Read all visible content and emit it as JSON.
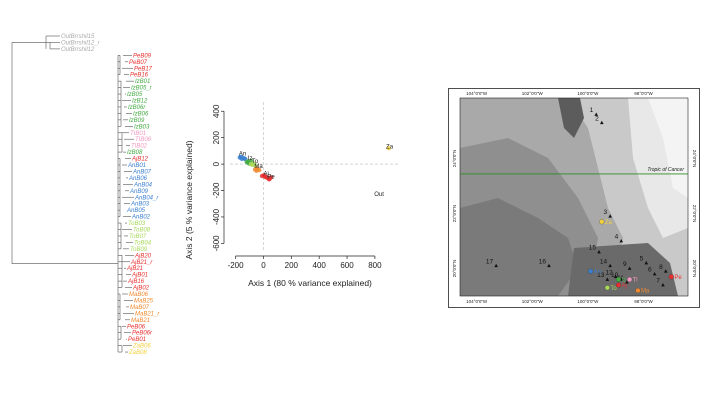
{
  "tree": {
    "tips": [
      {
        "label": "OutBrrshil15",
        "color": "#aaaaaa"
      },
      {
        "label": "OutBrrshil12_r",
        "color": "#aaaaaa"
      },
      {
        "label": "OutBrrshil12",
        "color": "#aaaaaa"
      },
      {
        "label": "PeB09",
        "color": "#e83030"
      },
      {
        "label": "PeB07",
        "color": "#e83030"
      },
      {
        "label": "PeB17",
        "color": "#e83030"
      },
      {
        "label": "PeB16",
        "color": "#e83030"
      },
      {
        "label": "IzB01",
        "color": "#44aa44"
      },
      {
        "label": "IzB05_r",
        "color": "#44aa44"
      },
      {
        "label": "IzB05",
        "color": "#44aa44"
      },
      {
        "label": "IzB12",
        "color": "#44aa44"
      },
      {
        "label": "IzB06r",
        "color": "#44aa44"
      },
      {
        "label": "IzB06",
        "color": "#44aa44"
      },
      {
        "label": "IzB09",
        "color": "#44aa44"
      },
      {
        "label": "IzB03",
        "color": "#44aa44"
      },
      {
        "label": "TIB01",
        "color": "#f29ac0"
      },
      {
        "label": "TIB08",
        "color": "#f29ac0"
      },
      {
        "label": "TIB02",
        "color": "#f29ac0"
      },
      {
        "label": "IzB08",
        "color": "#44aa44"
      },
      {
        "label": "AjB12",
        "color": "#e83030"
      },
      {
        "label": "AnB01",
        "color": "#3a7fd0"
      },
      {
        "label": "AnB07",
        "color": "#3a7fd0"
      },
      {
        "label": "AnB06",
        "color": "#3a7fd0"
      },
      {
        "label": "AnB04",
        "color": "#3a7fd0"
      },
      {
        "label": "AnB09",
        "color": "#3a7fd0"
      },
      {
        "label": "AnB04_r",
        "color": "#3a7fd0"
      },
      {
        "label": "AnB03",
        "color": "#3a7fd0"
      },
      {
        "label": "AnB05",
        "color": "#3a7fd0"
      },
      {
        "label": "AnB02",
        "color": "#3a7fd0"
      },
      {
        "label": "ToB03",
        "color": "#a8d95a"
      },
      {
        "label": "ToB08",
        "color": "#a8d95a"
      },
      {
        "label": "ToB07",
        "color": "#a8d95a"
      },
      {
        "label": "ToB04",
        "color": "#a8d95a"
      },
      {
        "label": "ToB09",
        "color": "#a8d95a"
      },
      {
        "label": "AjB20",
        "color": "#e83030"
      },
      {
        "label": "AjB21_r",
        "color": "#e83030"
      },
      {
        "label": "AjB21",
        "color": "#e83030"
      },
      {
        "label": "AjB01",
        "color": "#e83030"
      },
      {
        "label": "AjB16",
        "color": "#e83030"
      },
      {
        "label": "AjB02",
        "color": "#e83030"
      },
      {
        "label": "MaB06",
        "color": "#f08a30"
      },
      {
        "label": "MaB25",
        "color": "#f08a30"
      },
      {
        "label": "MaB07",
        "color": "#f08a30"
      },
      {
        "label": "MaB21_r",
        "color": "#f08a30"
      },
      {
        "label": "MaB21",
        "color": "#f08a30"
      },
      {
        "label": "PeB06",
        "color": "#e83030"
      },
      {
        "label": "PeB06r",
        "color": "#e83030"
      },
      {
        "label": "PeB01",
        "color": "#e83030"
      },
      {
        "label": "ZaB06",
        "color": "#f2d040"
      },
      {
        "label": "ZaB08",
        "color": "#f2d040"
      }
    ]
  },
  "chart_data": {
    "type": "scatter",
    "xlabel": "Axis 1 (80 % variance explained)",
    "ylabel": "Axis 2 (5 % variance explained)",
    "xlim": [
      -240,
      980
    ],
    "ylim": [
      -650,
      470
    ],
    "xticks": [
      -200,
      0,
      200,
      400,
      600,
      800
    ],
    "yticks": [
      -600,
      -400,
      -200,
      0,
      200,
      400
    ],
    "reference_lines": {
      "x": 0,
      "y": 0,
      "style": "dashed"
    },
    "series": [
      {
        "name": "An",
        "color": "#3a7fd0",
        "points": [
          [
            -170,
            50
          ],
          [
            -155,
            40
          ],
          [
            -140,
            45
          ],
          [
            -160,
            55
          ],
          [
            -130,
            38
          ]
        ]
      },
      {
        "name": "Iz",
        "color": "#44aa44",
        "points": [
          [
            -120,
            15
          ],
          [
            -110,
            20
          ],
          [
            -100,
            10
          ],
          [
            -90,
            25
          ],
          [
            -105,
            5
          ]
        ]
      },
      {
        "name": "To",
        "color": "#a8d95a",
        "points": [
          [
            -90,
            0
          ],
          [
            -80,
            -5
          ],
          [
            -70,
            5
          ],
          [
            -60,
            -10
          ]
        ]
      },
      {
        "name": "Ma",
        "color": "#f08a30",
        "points": [
          [
            -60,
            -40
          ],
          [
            -45,
            -35
          ],
          [
            -30,
            -45
          ],
          [
            -50,
            -50
          ]
        ]
      },
      {
        "name": "Aj",
        "color": "#e83030",
        "points": [
          [
            -10,
            -90
          ],
          [
            5,
            -85
          ],
          [
            20,
            -100
          ],
          [
            10,
            -95
          ]
        ]
      },
      {
        "name": "Pe",
        "color": "#e83030",
        "points": [
          [
            30,
            -105
          ],
          [
            45,
            -110
          ],
          [
            55,
            -100
          ],
          [
            40,
            -115
          ]
        ]
      },
      {
        "name": "Za",
        "color": "#f2d040",
        "points": [
          [
            900,
            120
          ]
        ]
      },
      {
        "name": "Out",
        "color": "#aaaaaa",
        "points": []
      }
    ],
    "labels": [
      {
        "text": "An",
        "x": -150,
        "y": 65,
        "color": "#3a7fd0"
      },
      {
        "text": "Iz",
        "x": -95,
        "y": 30,
        "color": "#44aa44"
      },
      {
        "text": "To",
        "x": -60,
        "y": 10,
        "color": "#a8d95a"
      },
      {
        "text": "Ma",
        "x": -35,
        "y": -30,
        "color": "#f08a30"
      },
      {
        "text": "Aj",
        "x": 20,
        "y": -85,
        "color": "#e83030"
      },
      {
        "text": "Pe",
        "x": 55,
        "y": -110,
        "color": "#e83030"
      },
      {
        "text": "Za",
        "x": 905,
        "y": 120,
        "color": "#c8a800"
      },
      {
        "text": "Out",
        "x": 830,
        "y": -240,
        "color": "#aaaaaa"
      }
    ]
  },
  "map": {
    "lon_ticks_top": [
      "104°0'0\"W",
      "102°0'0\"W",
      "100°0'0\"W",
      "98°0'0\"W"
    ],
    "lon_ticks_bottom": [
      "104°0'0\"W",
      "102°0'0\"W",
      "100°0'0\"W",
      "98°0'0\"W"
    ],
    "lat_ticks_left": [
      "24°0'0\"N",
      "22°0'0\"N",
      "20°0'0\"N"
    ],
    "lat_ticks_right": [
      "24°0'0\"N",
      "22°0'0\"N",
      "20°0'0\"N"
    ],
    "tropic_label": "Tropic of Cancer",
    "tropic_color": "#2e8b22",
    "sites": [
      {
        "n": "1",
        "lon": -99.7,
        "lat": 25.6
      },
      {
        "n": "2",
        "lon": -99.5,
        "lat": 25.3
      },
      {
        "n": "3",
        "lon": -99.2,
        "lat": 21.9
      },
      {
        "n": "4",
        "lon": -98.8,
        "lat": 21.0
      },
      {
        "n": "5",
        "lon": -97.9,
        "lat": 20.2
      },
      {
        "n": "6",
        "lon": -97.6,
        "lat": 19.8
      },
      {
        "n": "7",
        "lon": -97.3,
        "lat": 19.4
      },
      {
        "n": "8",
        "lon": -97.2,
        "lat": 19.9
      },
      {
        "n": "9",
        "lon": -98.5,
        "lat": 20.0
      },
      {
        "n": "10",
        "lon": -98.8,
        "lat": 19.6
      },
      {
        "n": "11",
        "lon": -98.6,
        "lat": 19.5
      },
      {
        "n": "12",
        "lon": -99.0,
        "lat": 19.7
      },
      {
        "n": "13",
        "lon": -99.3,
        "lat": 19.6
      },
      {
        "n": "14",
        "lon": -99.2,
        "lat": 20.1
      },
      {
        "n": "15",
        "lon": -99.6,
        "lat": 20.6
      },
      {
        "n": "16",
        "lon": -101.4,
        "lat": 20.1
      },
      {
        "n": "17",
        "lon": -103.3,
        "lat": 20.1
      }
    ],
    "groups": [
      {
        "text": "Za",
        "lon": -99.5,
        "lat": 21.7,
        "color": "#f2d040"
      },
      {
        "text": "An",
        "lon": -99.9,
        "lat": 19.9,
        "color": "#3a7fd0"
      },
      {
        "text": "Iz",
        "lon": -98.9,
        "lat": 19.6,
        "color": "#44aa44"
      },
      {
        "text": "To",
        "lon": -99.3,
        "lat": 19.3,
        "color": "#a8d95a"
      },
      {
        "text": "Ma",
        "lon": -98.2,
        "lat": 19.2,
        "color": "#f08a30"
      },
      {
        "text": "Aj",
        "lon": -98.9,
        "lat": 19.4,
        "color": "#e83030"
      },
      {
        "text": "Tl",
        "lon": -98.5,
        "lat": 19.6,
        "color": "#f29ac0"
      },
      {
        "text": "Pe",
        "lon": -97.0,
        "lat": 19.7,
        "color": "#e83030"
      }
    ]
  }
}
